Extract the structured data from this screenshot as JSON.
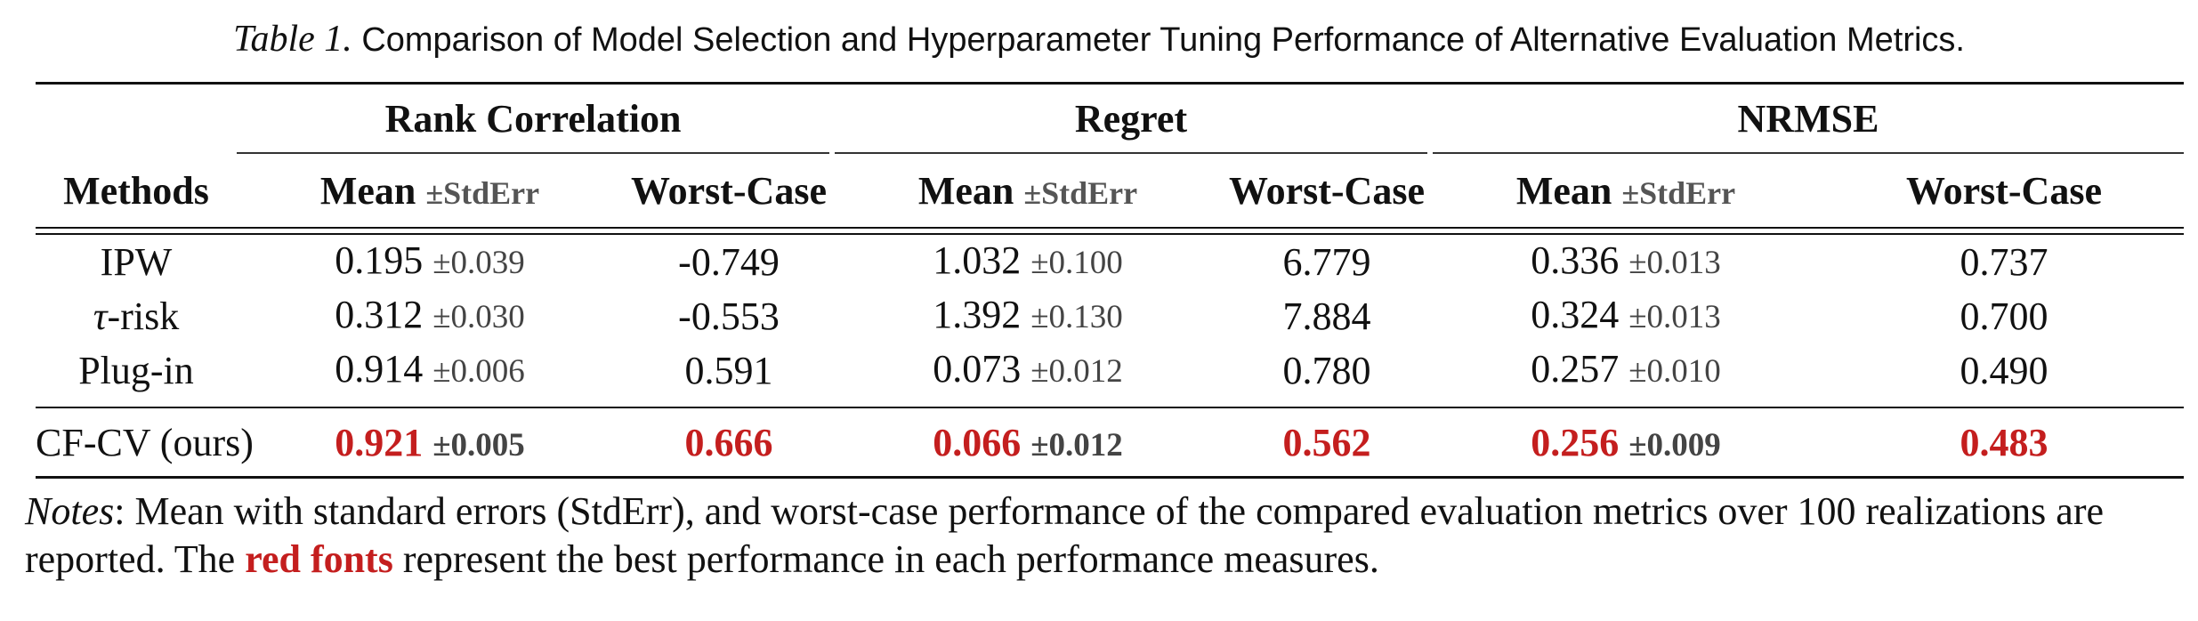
{
  "caption": {
    "label": "Table 1.",
    "text": "Comparison of Model Selection and Hyperparameter Tuning Performance of Alternative Evaluation Metrics."
  },
  "table": {
    "methods_header": "Methods",
    "groups": [
      "Rank Correlation",
      "Regret",
      "NRMSE"
    ],
    "sub_mean": "Mean",
    "sub_stderr": "±StdErr",
    "sub_worst": "Worst-Case",
    "rows": [
      {
        "method": "IPW",
        "cells": [
          {
            "mean": "0.195",
            "se": "±0.039",
            "worst": "-0.749"
          },
          {
            "mean": "1.032",
            "se": "±0.100",
            "worst": "6.779"
          },
          {
            "mean": "0.336",
            "se": "±0.013",
            "worst": "0.737"
          }
        ]
      },
      {
        "method_symbol": "τ",
        "method_suffix": "-risk",
        "cells": [
          {
            "mean": "0.312",
            "se": "±0.030",
            "worst": "-0.553"
          },
          {
            "mean": "1.392",
            "se": "±0.130",
            "worst": "7.884"
          },
          {
            "mean": "0.324",
            "se": "±0.013",
            "worst": "0.700"
          }
        ]
      },
      {
        "method": "Plug-in",
        "cells": [
          {
            "mean": "0.914",
            "se": "±0.006",
            "worst": "0.591"
          },
          {
            "mean": "0.073",
            "se": "±0.012",
            "worst": "0.780"
          },
          {
            "mean": "0.257",
            "se": "±0.010",
            "worst": "0.490"
          }
        ]
      }
    ],
    "ours": {
      "method": "CF-CV (ours)",
      "cells": [
        {
          "mean": "0.921",
          "se": "±0.005",
          "worst": "0.666"
        },
        {
          "mean": "0.066",
          "se": "±0.012",
          "worst": "0.562"
        },
        {
          "mean": "0.256",
          "se": "±0.009",
          "worst": "0.483"
        }
      ]
    },
    "highlight_color": "#c41e1e"
  },
  "notes": {
    "label": "Notes",
    "text_before": ": Mean with standard errors (StdErr), and worst-case performance of the compared evaluation metrics over 100 realizations are reported. The ",
    "red_text": "red fonts",
    "text_after": " represent the best performance in each performance measures."
  }
}
